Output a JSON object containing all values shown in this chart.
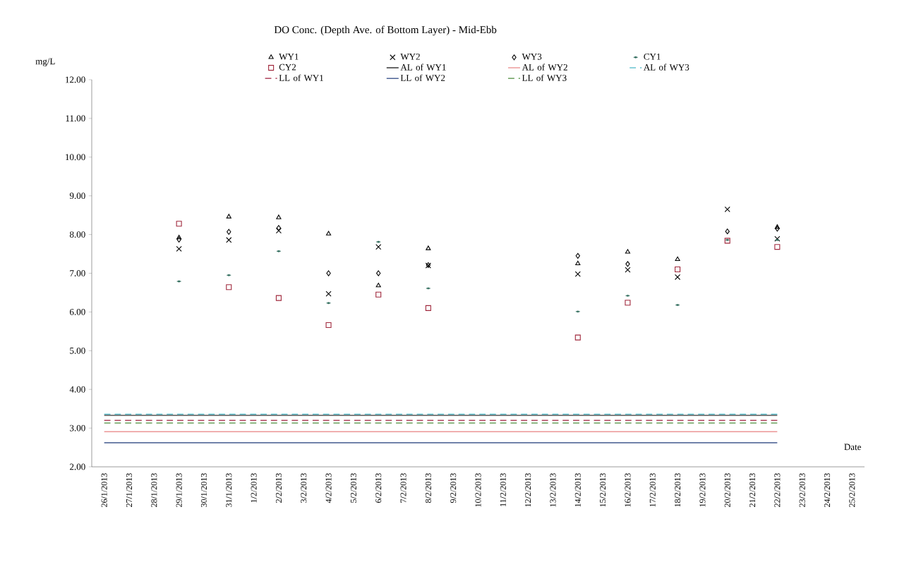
{
  "chart_data": {
    "type": "scatter",
    "title": "DO Conc. (Depth Ave. of Bottom Layer) - Mid-Ebb",
    "xlabel": "Date",
    "ylabel": "mg/L",
    "categories": [
      "26/1/2013",
      "27/1/2013",
      "28/1/2013",
      "29/1/2013",
      "30/1/2013",
      "31/1/2013",
      "1/2/2013",
      "2/2/2013",
      "3/2/2013",
      "4/2/2013",
      "5/2/2013",
      "6/2/2013",
      "7/2/2013",
      "8/2/2013",
      "9/2/2013",
      "10/2/2013",
      "11/2/2013",
      "12/2/2013",
      "13/2/2013",
      "14/2/2013",
      "15/2/2013",
      "16/2/2013",
      "17/2/2013",
      "18/2/2013",
      "19/2/2013",
      "20/2/2013",
      "21/2/2013",
      "22/2/2013",
      "23/2/2013",
      "24/2/2013",
      "25/2/2013"
    ],
    "ylim": [
      2,
      12
    ],
    "yticks": [
      {
        "value": 2,
        "label": "2.00"
      },
      {
        "value": 3,
        "label": "3.00"
      },
      {
        "value": 4,
        "label": "4.00"
      },
      {
        "value": 5,
        "label": "5.00"
      },
      {
        "value": 6,
        "label": "6.00"
      },
      {
        "value": 7,
        "label": "7.00"
      },
      {
        "value": 8,
        "label": "8.00"
      },
      {
        "value": 9,
        "label": "9.00"
      },
      {
        "value": 10,
        "label": "10.00"
      },
      {
        "value": 11,
        "label": "11.00"
      },
      {
        "value": 12,
        "label": "12.00"
      }
    ],
    "legend": "top",
    "series": [
      {
        "name": "WY1",
        "type": "scatter",
        "marker": "triangle",
        "color": "#000000",
        "values": [
          null,
          null,
          null,
          7.92,
          null,
          8.46,
          null,
          8.44,
          null,
          8.02,
          null,
          6.68,
          null,
          7.64,
          null,
          null,
          null,
          null,
          null,
          7.25,
          null,
          7.55,
          null,
          7.36,
          null,
          null,
          null,
          8.19,
          null,
          null,
          null
        ]
      },
      {
        "name": "WY2",
        "type": "scatter",
        "marker": "cross",
        "color": "#000000",
        "values": [
          null,
          null,
          null,
          7.63,
          null,
          7.86,
          null,
          8.1,
          null,
          6.47,
          null,
          7.68,
          null,
          7.2,
          null,
          null,
          null,
          null,
          null,
          6.98,
          null,
          7.09,
          null,
          6.9,
          null,
          8.65,
          null,
          7.89,
          null,
          null,
          null
        ]
      },
      {
        "name": "WY3",
        "type": "scatter",
        "marker": "diamond",
        "color": "#000000",
        "values": [
          null,
          null,
          null,
          7.87,
          null,
          8.07,
          null,
          8.17,
          null,
          7.0,
          null,
          7.0,
          null,
          7.21,
          null,
          null,
          null,
          null,
          null,
          7.45,
          null,
          7.24,
          null,
          null,
          null,
          8.08,
          null,
          8.15,
          null,
          null,
          null
        ]
      },
      {
        "name": "CY1",
        "type": "scatter",
        "marker": "diamond",
        "color": "#2e6b5a",
        "values": [
          null,
          null,
          null,
          6.79,
          null,
          6.95,
          null,
          7.57,
          null,
          6.23,
          null,
          7.81,
          null,
          6.61,
          null,
          null,
          null,
          null,
          null,
          6.01,
          null,
          6.42,
          null,
          6.18,
          null,
          7.86,
          null,
          7.86,
          null,
          null,
          null
        ]
      },
      {
        "name": "CY2",
        "type": "scatter",
        "marker": "square",
        "color": "#a0283c",
        "values": [
          null,
          null,
          null,
          8.28,
          null,
          6.64,
          null,
          6.36,
          null,
          5.66,
          null,
          6.45,
          null,
          6.1,
          null,
          null,
          null,
          null,
          null,
          5.34,
          null,
          6.24,
          null,
          7.1,
          null,
          7.84,
          null,
          7.68,
          null,
          null,
          null
        ]
      },
      {
        "name": "AL of WY1",
        "type": "line",
        "line_style": "solid",
        "color": "#000000",
        "values": [
          3.33,
          3.33,
          3.33,
          3.33,
          3.33,
          3.33,
          3.33,
          3.33,
          3.33,
          3.33,
          3.33,
          3.33,
          3.33,
          3.33,
          3.33,
          3.33,
          3.33,
          3.33,
          3.33,
          3.33,
          3.33,
          3.33,
          3.33,
          3.33,
          3.33,
          3.33,
          3.33,
          3.33,
          null,
          null,
          null
        ]
      },
      {
        "name": "AL of WY2",
        "type": "line",
        "line_style": "solid",
        "color": "#e88080",
        "values": [
          2.91,
          2.91,
          2.91,
          2.91,
          2.91,
          2.91,
          2.91,
          2.91,
          2.91,
          2.91,
          2.91,
          2.91,
          2.91,
          2.91,
          2.91,
          2.91,
          2.91,
          2.91,
          2.91,
          2.91,
          2.91,
          2.91,
          2.91,
          2.91,
          2.91,
          2.91,
          2.91,
          2.91,
          null,
          null,
          null
        ]
      },
      {
        "name": "AL of WY3",
        "type": "line",
        "line_style": "dashed",
        "color": "#4bb8c8",
        "values": [
          3.36,
          3.36,
          3.36,
          3.36,
          3.36,
          3.36,
          3.36,
          3.36,
          3.36,
          3.36,
          3.36,
          3.36,
          3.36,
          3.36,
          3.36,
          3.36,
          3.36,
          3.36,
          3.36,
          3.36,
          3.36,
          3.36,
          3.36,
          3.36,
          3.36,
          3.36,
          3.36,
          3.36,
          null,
          null,
          null
        ]
      },
      {
        "name": "LL of WY1",
        "type": "line",
        "line_style": "dashed",
        "color": "#a01c3c",
        "values": [
          3.2,
          3.2,
          3.2,
          3.2,
          3.2,
          3.2,
          3.2,
          3.2,
          3.2,
          3.2,
          3.2,
          3.2,
          3.2,
          3.2,
          3.2,
          3.2,
          3.2,
          3.2,
          3.2,
          3.2,
          3.2,
          3.2,
          3.2,
          3.2,
          3.2,
          3.2,
          3.2,
          3.2,
          null,
          null,
          null
        ]
      },
      {
        "name": "LL of WY2",
        "type": "line",
        "line_style": "solid",
        "color": "#1f3a7a",
        "values": [
          2.62,
          2.62,
          2.62,
          2.62,
          2.62,
          2.62,
          2.62,
          2.62,
          2.62,
          2.62,
          2.62,
          2.62,
          2.62,
          2.62,
          2.62,
          2.62,
          2.62,
          2.62,
          2.62,
          2.62,
          2.62,
          2.62,
          2.62,
          2.62,
          2.62,
          2.62,
          2.62,
          2.62,
          null,
          null,
          null
        ]
      },
      {
        "name": "LL of WY3",
        "type": "line",
        "line_style": "dashed",
        "color": "#4a8a3a",
        "values": [
          3.13,
          3.13,
          3.13,
          3.13,
          3.13,
          3.13,
          3.13,
          3.13,
          3.13,
          3.13,
          3.13,
          3.13,
          3.13,
          3.13,
          3.13,
          3.13,
          3.13,
          3.13,
          3.13,
          3.13,
          3.13,
          3.13,
          3.13,
          3.13,
          3.13,
          3.13,
          3.13,
          3.13,
          null,
          null,
          null
        ]
      }
    ]
  }
}
